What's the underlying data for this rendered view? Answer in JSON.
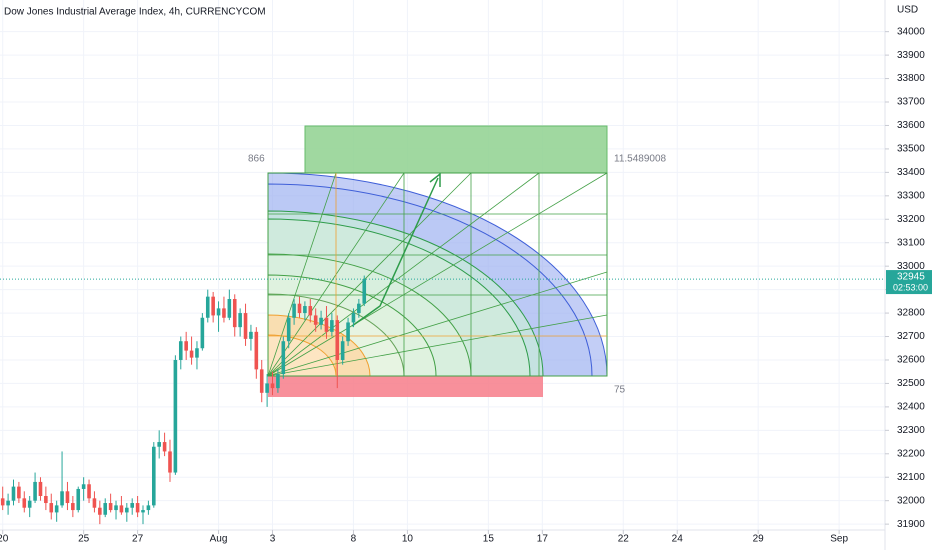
{
  "chart_data": {
    "type": "candlestick",
    "title": "Dow Jones Industrial Average Index, 4h, CURRENCYCOM",
    "currency": "USD",
    "x": [
      0.0,
      0.2,
      0.4,
      0.6,
      0.8,
      1.0,
      1.2,
      1.4,
      1.6,
      1.8,
      2.0,
      2.2,
      2.4,
      2.6,
      2.8,
      3.0,
      3.2,
      3.4,
      3.6,
      3.8,
      4.0,
      4.2,
      4.4,
      4.6,
      4.8,
      5.0,
      5.2,
      5.4,
      5.6,
      5.8,
      6.0,
      6.2,
      6.4,
      6.6,
      6.8,
      7.0,
      7.2,
      7.4,
      7.6,
      7.8,
      8.0,
      8.2,
      8.4,
      8.6,
      8.8,
      9.0,
      9.2,
      9.4,
      9.6,
      9.8,
      10.0,
      10.2,
      10.4,
      10.6,
      10.8,
      11.0,
      11.2,
      11.4,
      11.6,
      11.8,
      12.0,
      12.2,
      12.4,
      12.6,
      12.8,
      13.0,
      13.2,
      13.4
    ],
    "open": [
      32010,
      31980,
      32000,
      32060,
      32010,
      31970,
      32000,
      32080,
      32020,
      31990,
      31950,
      31980,
      32040,
      31990,
      31960,
      32050,
      32070,
      32010,
      31970,
      31940,
      31990,
      31960,
      31980,
      31950,
      31970,
      31990,
      31950,
      31960,
      31980,
      32230,
      32250,
      32210,
      32120,
      32600,
      32680,
      32640,
      32610,
      32650,
      32780,
      32870,
      32790,
      32820,
      32780,
      32860,
      32740,
      32800,
      32690,
      32720,
      32560,
      32460,
      32500,
      32480,
      32540,
      32680,
      32780,
      32840,
      32800,
      32830,
      32790,
      32750,
      32780,
      32720,
      32770,
      32600,
      32680,
      32760,
      32800,
      32840
    ],
    "high": [
      32060,
      32030,
      32090,
      32080,
      32040,
      32020,
      32120,
      32100,
      32060,
      32030,
      32000,
      32210,
      32080,
      32020,
      32060,
      32100,
      32090,
      32040,
      32000,
      32010,
      32030,
      32000,
      32020,
      31990,
      32010,
      32020,
      31980,
      32000,
      32250,
      32300,
      32290,
      32260,
      32620,
      32700,
      32720,
      32700,
      32680,
      32800,
      32900,
      32890,
      32850,
      32870,
      32900,
      32880,
      32820,
      32840,
      32750,
      32740,
      32600,
      32540,
      32550,
      32560,
      32700,
      32800,
      32860,
      32870,
      32850,
      32860,
      32820,
      32810,
      32830,
      32800,
      32790,
      32700,
      32780,
      32820,
      32860,
      32960
    ],
    "low": [
      31960,
      31940,
      31980,
      31990,
      31950,
      31930,
      31990,
      32000,
      31960,
      31920,
      31910,
      31970,
      31960,
      31930,
      31950,
      32000,
      31990,
      31950,
      31900,
      31930,
      31950,
      31920,
      31940,
      31910,
      31940,
      31930,
      31900,
      31940,
      31970,
      32180,
      32190,
      32080,
      32110,
      32560,
      32600,
      32580,
      32560,
      32640,
      32760,
      32760,
      32720,
      32760,
      32770,
      32700,
      32700,
      32660,
      32640,
      32520,
      32420,
      32400,
      32450,
      32460,
      32520,
      32650,
      32750,
      32780,
      32770,
      32760,
      32720,
      32730,
      32690,
      32700,
      32480,
      32580,
      32660,
      32740,
      32780,
      32830
    ],
    "close": [
      31980,
      32000,
      32060,
      32010,
      31970,
      32000,
      32080,
      32020,
      31990,
      31950,
      31980,
      32040,
      31990,
      31960,
      32050,
      32070,
      32010,
      31970,
      31940,
      31990,
      31960,
      31980,
      31950,
      31970,
      31990,
      31950,
      31960,
      31980,
      32230,
      32250,
      32210,
      32120,
      32600,
      32680,
      32640,
      32610,
      32650,
      32780,
      32870,
      32790,
      32820,
      32780,
      32860,
      32740,
      32800,
      32690,
      32720,
      32560,
      32460,
      32500,
      32480,
      32540,
      32680,
      32780,
      32840,
      32800,
      32830,
      32790,
      32750,
      32780,
      32720,
      32770,
      32600,
      32680,
      32760,
      32800,
      32840,
      32945
    ],
    "up_color": "#26a69a",
    "down_color": "#ef5350",
    "xlim": [
      -0.1,
      32.7
    ],
    "xticks": [
      {
        "value": 0,
        "label": "20"
      },
      {
        "value": 3,
        "label": "25"
      },
      {
        "value": 5,
        "label": "27"
      },
      {
        "value": 8,
        "label": "Aug"
      },
      {
        "value": 10,
        "label": "3"
      },
      {
        "value": 13,
        "label": "8"
      },
      {
        "value": 15,
        "label": "10"
      },
      {
        "value": 18,
        "label": "15"
      },
      {
        "value": 20,
        "label": "17"
      },
      {
        "value": 23,
        "label": "22"
      },
      {
        "value": 25,
        "label": "24"
      },
      {
        "value": 28,
        "label": "29"
      },
      {
        "value": 31,
        "label": "Sep"
      }
    ],
    "ylim": [
      31875,
      34135
    ],
    "yticks": [
      31900,
      32000,
      32100,
      32200,
      32300,
      32400,
      32500,
      32600,
      32700,
      32800,
      32900,
      33000,
      33100,
      33200,
      33300,
      33400,
      33500,
      33600,
      33700,
      33800,
      33900,
      34000
    ],
    "grid": true,
    "last_price": 32945,
    "countdown": "02:53:00",
    "annotations": [
      "866",
      "11.5489008",
      "75"
    ]
  }
}
